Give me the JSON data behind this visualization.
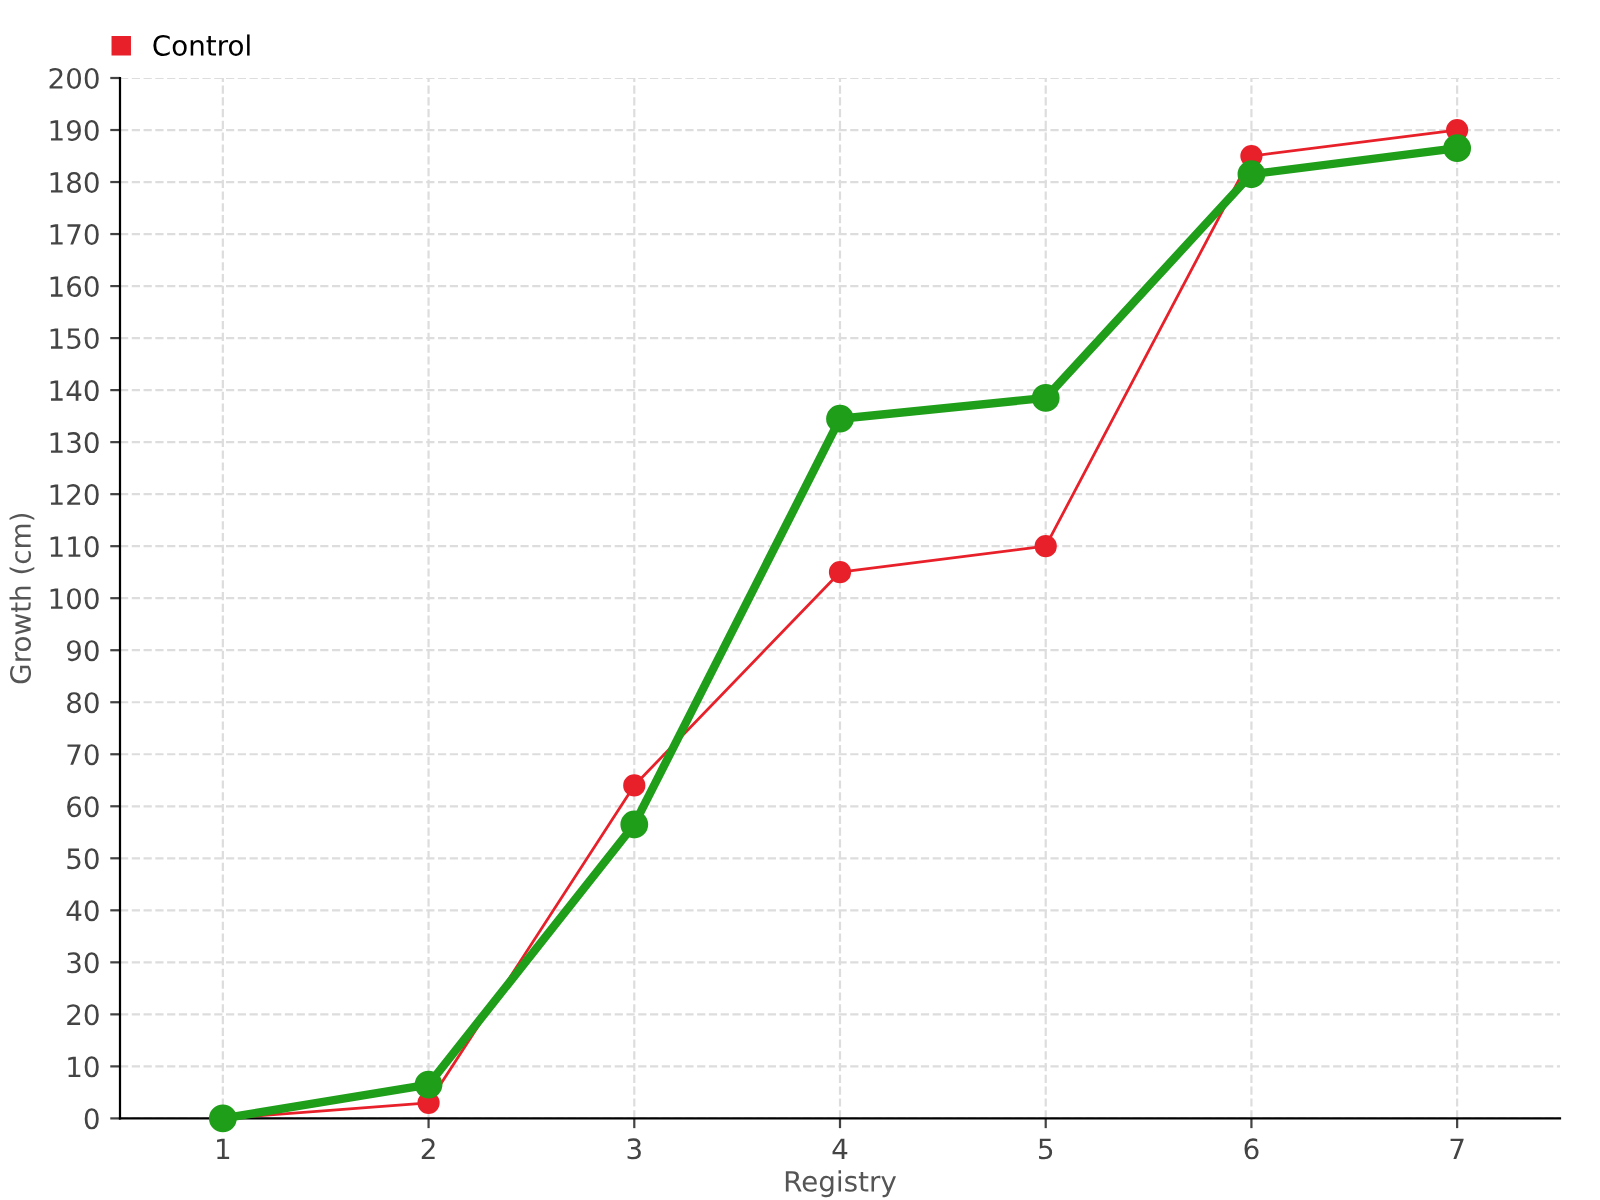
{
  "chart_data": {
    "type": "line",
    "xlabel": "Registry",
    "ylabel": "Growth (cm)",
    "categories": [
      "1",
      "2",
      "3",
      "4",
      "5",
      "6",
      "7"
    ],
    "series": [
      {
        "color": "#1f9e1a",
        "values": [
          0,
          6.5,
          56.5,
          134.5,
          138.5,
          181.5,
          186.5
        ]
      },
      {
        "name": "Control",
        "color": "#e8202a",
        "values": [
          0,
          3,
          64,
          105,
          110,
          185,
          190
        ]
      }
    ],
    "ylim": [
      0,
      200
    ],
    "yticks": [
      0,
      10,
      20,
      30,
      40,
      50,
      60,
      70,
      80,
      90,
      100,
      110,
      120,
      130,
      140,
      150,
      160,
      170,
      180,
      190,
      200
    ],
    "grid": true,
    "legend": "top left",
    "marker": "circle",
    "line_style": "solid"
  }
}
